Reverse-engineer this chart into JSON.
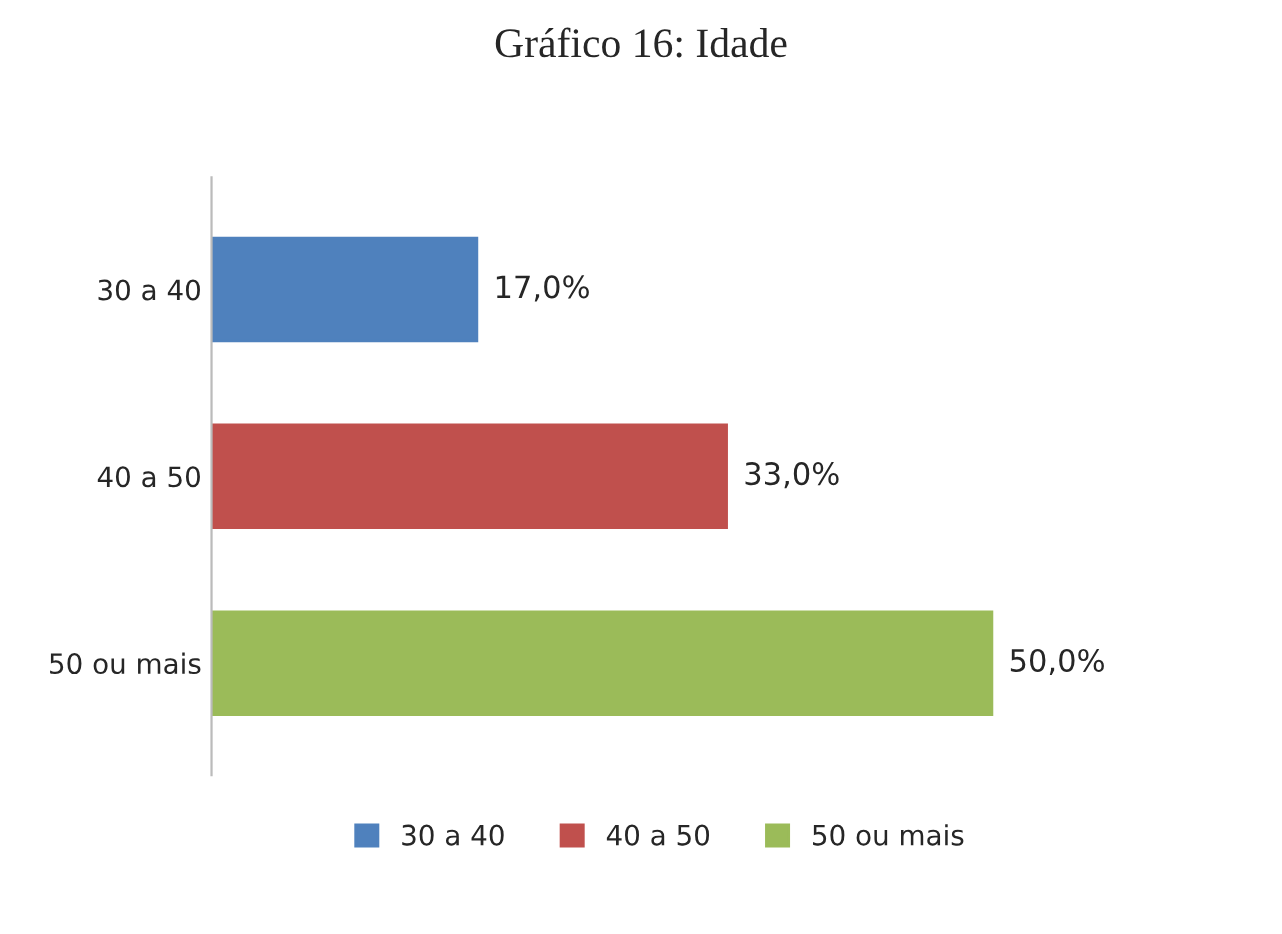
{
  "chart_data": {
    "type": "bar",
    "title": "Gráfico 16: Idade",
    "orientation": "horizontal",
    "categories": [
      "30 a 40",
      "40 a 50",
      "50 ou mais"
    ],
    "series": [
      {
        "name": "30 a 40",
        "color": "#4f81bd",
        "values": [
          17,
          null,
          null
        ],
        "value_labels": [
          "17,0%",
          null,
          null
        ]
      },
      {
        "name": "40 a 50",
        "color": "#c0504d",
        "values": [
          null,
          33,
          null
        ],
        "value_labels": [
          null,
          "33,0%",
          null
        ]
      },
      {
        "name": "50 ou mais",
        "color": "#9bbb59",
        "values": [
          null,
          null,
          50
        ],
        "value_labels": [
          null,
          null,
          "50,0%"
        ]
      }
    ],
    "legend": "bottom",
    "grid": false
  }
}
